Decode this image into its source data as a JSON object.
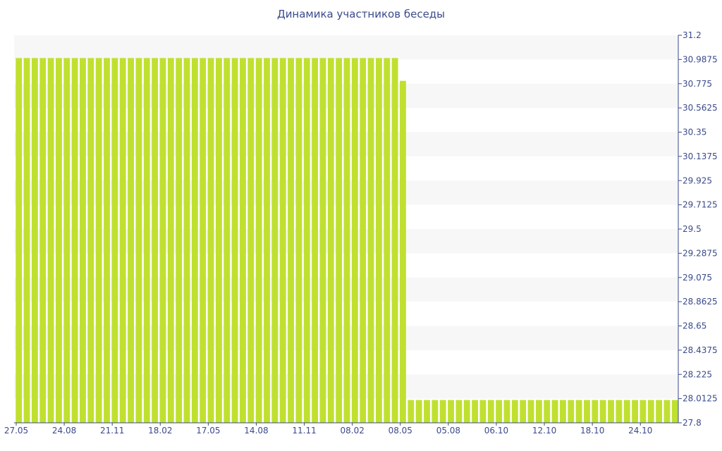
{
  "title": "Динамика участников беседы",
  "chart_data": {
    "type": "bar",
    "title": "Динамика участников беседы",
    "xlabel": "",
    "ylabel": "",
    "ylim": [
      27.8,
      31.2
    ],
    "y_ticks": [
      "31.2",
      "30.9875",
      "30.775",
      "30.5625",
      "30.35",
      "30.1375",
      "29.925",
      "29.7125",
      "29.5",
      "29.2875",
      "29.075",
      "28.8625",
      "28.65",
      "28.4375",
      "28.225",
      "28.0125",
      "27.8"
    ],
    "x_tick_labels": [
      "27.05",
      "24.08",
      "21.11",
      "18.02",
      "17.05",
      "14.08",
      "11.11",
      "08.02",
      "08.05",
      "05.08",
      "06.10",
      "12.10",
      "18.10",
      "24.10"
    ],
    "bar_color": "#c0e030",
    "band_color": "#f7f7f7",
    "grid": "alternating bands",
    "y_axis_position": "right",
    "series": [
      {
        "values": [
          31,
          31,
          31,
          31,
          31,
          31,
          31,
          31,
          31,
          31,
          31,
          31,
          31,
          31,
          31,
          31,
          31,
          31,
          31,
          31,
          31,
          31,
          31,
          31,
          31,
          31,
          31,
          31,
          31,
          31,
          31,
          31,
          31,
          31,
          31,
          31,
          31,
          31,
          31,
          31,
          31,
          31,
          31,
          31,
          31,
          31,
          31,
          31,
          30.8,
          28,
          28,
          28,
          28,
          28,
          28,
          28,
          28,
          28,
          28,
          28,
          28,
          28,
          28,
          28,
          28,
          28,
          28,
          28,
          28,
          28,
          28,
          28,
          28,
          28,
          28,
          28,
          28,
          28,
          28,
          28,
          28,
          28,
          28
        ]
      }
    ]
  }
}
